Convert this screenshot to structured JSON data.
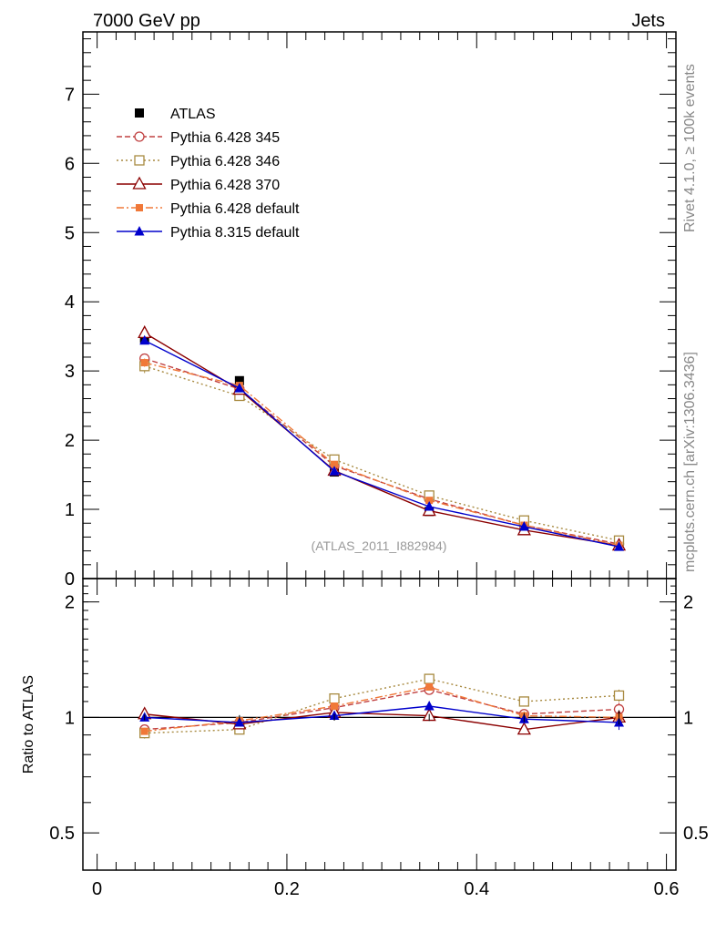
{
  "header": {
    "left": "7000 GeV pp",
    "right": "Jets"
  },
  "side_labels": {
    "rivet": "Rivet 4.1.0, ≥ 100k events",
    "mcplots": "mcplots.cern.ch [arXiv:1306.3436]"
  },
  "analysis_label": "(ATLAS_2011_I882984)",
  "chart_data": [
    {
      "type": "line",
      "panel": "main",
      "xlim": [
        -0.015,
        0.61
      ],
      "ylim": [
        0,
        7.9
      ],
      "yticks": [
        0,
        1,
        2,
        3,
        4,
        5,
        6,
        7
      ],
      "ytick_labels": [
        "0",
        "1",
        "2",
        "3",
        "4",
        "5",
        "6",
        "7"
      ],
      "legend_position": "top-left",
      "x": [
        0.05,
        0.15,
        0.25,
        0.35,
        0.45,
        0.55
      ],
      "series": [
        {
          "name": "ATLAS",
          "color": "#000000",
          "marker": "square-filled",
          "line": "none",
          "values": [
            3.47,
            2.86,
            1.54,
            0.97,
            0.75,
            0.47
          ],
          "errors": [
            0.06,
            0.04,
            0.03,
            0.02,
            0.02,
            0.02
          ]
        },
        {
          "name": "Pythia 6.428 345",
          "color": "#c04040",
          "marker": "circle-open",
          "line": "dashed",
          "values": [
            3.18,
            2.74,
            1.63,
            1.15,
            0.77,
            0.5
          ],
          "errors": [
            0.05,
            0.03,
            0.02,
            0.02,
            0.02,
            0.02
          ]
        },
        {
          "name": "Pythia 6.428 346",
          "color": "#a88a40",
          "marker": "square-open",
          "line": "dotted",
          "values": [
            3.07,
            2.64,
            1.72,
            1.2,
            0.84,
            0.55
          ],
          "errors": [
            0.1,
            0.04,
            0.03,
            0.02,
            0.02,
            0.02
          ]
        },
        {
          "name": "Pythia 6.428 370",
          "color": "#8b0000",
          "marker": "triangle-open",
          "line": "solid",
          "values": [
            3.55,
            2.73,
            1.56,
            0.98,
            0.7,
            0.48
          ],
          "errors": [
            0.1,
            0.04,
            0.03,
            0.02,
            0.02,
            0.02
          ]
        },
        {
          "name": "Pythia 6.428 default",
          "color": "#f07838",
          "marker": "square-filled-small",
          "line": "dashdot",
          "values": [
            3.12,
            2.79,
            1.65,
            1.13,
            0.77,
            0.48
          ],
          "errors": [
            0.06,
            0.04,
            0.03,
            0.02,
            0.02,
            0.02
          ]
        },
        {
          "name": "Pythia 8.315 default",
          "color": "#0000cc",
          "marker": "triangle-filled",
          "line": "solid",
          "values": [
            3.44,
            2.75,
            1.55,
            1.04,
            0.75,
            0.46
          ],
          "errors": [
            0.05,
            0.04,
            0.03,
            0.02,
            0.02,
            0.02
          ]
        }
      ]
    },
    {
      "type": "line",
      "panel": "ratio",
      "ylabel": "Ratio to ATLAS",
      "xlim": [
        -0.015,
        0.61
      ],
      "ylim": [
        0.4,
        2.3
      ],
      "ytick_labels": [
        "0.5",
        "1",
        "2"
      ],
      "yticks": [
        0.5,
        1,
        2
      ],
      "xticks": [
        0,
        0.2,
        0.4,
        0.6
      ],
      "xtick_labels": [
        "0",
        "0.2",
        "0.4",
        "0.6"
      ],
      "x": [
        0.05,
        0.15,
        0.25,
        0.35,
        0.45,
        0.55
      ],
      "series": [
        {
          "name": "Pythia 6.428 345",
          "values": [
            0.93,
            0.97,
            1.06,
            1.18,
            1.02,
            1.05
          ]
        },
        {
          "name": "Pythia 6.428 346",
          "values": [
            0.91,
            0.93,
            1.12,
            1.26,
            1.1,
            1.14
          ]
        },
        {
          "name": "Pythia 6.428 370",
          "values": [
            1.02,
            0.96,
            1.03,
            1.01,
            0.93,
            1.0
          ]
        },
        {
          "name": "Pythia 6.428 default",
          "values": [
            0.92,
            0.98,
            1.07,
            1.2,
            1.01,
            1.0
          ]
        },
        {
          "name": "Pythia 8.315 default",
          "values": [
            1.0,
            0.97,
            1.01,
            1.07,
            0.99,
            0.97
          ]
        }
      ]
    }
  ]
}
